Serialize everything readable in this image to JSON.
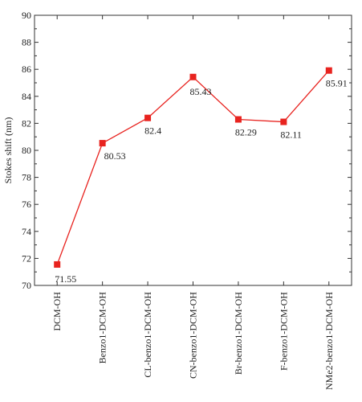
{
  "chart_data": {
    "type": "line",
    "title": "",
    "xlabel": "",
    "ylabel": "Stokes shift (nm)",
    "categories": [
      "DCM-OH",
      "Benzo1-DCM-OH",
      "CL-benzo1-DCM-OH",
      "CN-benzo1-DCM-OH",
      "Br-benzo1-DCM-OH",
      "F-benzo1-DCM-OH",
      "NMe2-benzo1-DCM-OH"
    ],
    "series": [
      {
        "values": [
          71.55,
          80.53,
          82.4,
          85.43,
          82.29,
          82.11,
          85.91
        ],
        "labels": [
          "71.55",
          "80.53",
          "82.4",
          "85.43",
          "82.29",
          "82.11",
          "85.91"
        ]
      }
    ],
    "ylim": [
      70,
      90
    ],
    "yticks": [
      70,
      72,
      74,
      76,
      78,
      80,
      82,
      84,
      86,
      88,
      90
    ],
    "colors": {
      "series": "#e8231f",
      "axis": "#333333"
    },
    "grid": false,
    "legend": "none"
  }
}
